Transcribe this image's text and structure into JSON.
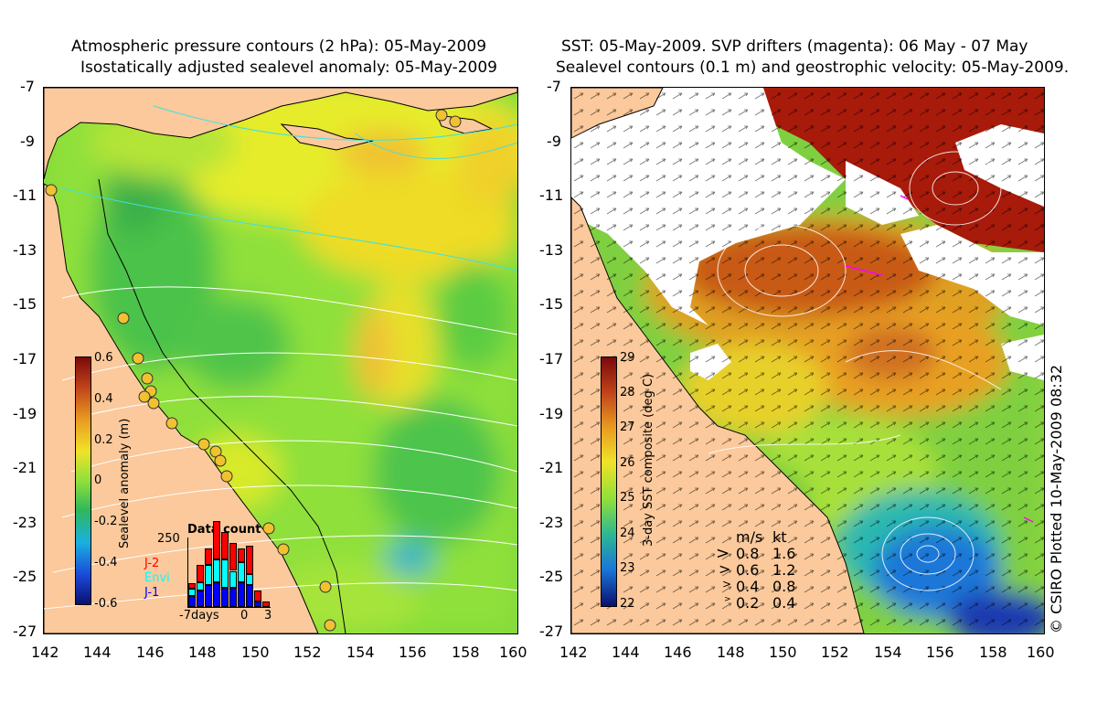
{
  "left_panel": {
    "title_line1": "Atmospheric pressure contours (2 hPa): 05-May-2009",
    "title_line2": "Isostatically adjusted sealevel anomaly: 05-May-2009",
    "y_ticks": [
      "-7",
      "-9",
      "-11",
      "-13",
      "-15",
      "-17",
      "-19",
      "-21",
      "-23",
      "-25",
      "-27"
    ],
    "x_ticks": [
      "142",
      "144",
      "146",
      "148",
      "150",
      "152",
      "154",
      "156",
      "158",
      "160"
    ],
    "colorbar": {
      "label": "Sealevel anomaly (m)",
      "ticks": [
        "0.6",
        "0.4",
        "0.2",
        "0",
        "-0.2",
        "-0.4",
        "-0.6"
      ],
      "range": [
        -0.6,
        0.6
      ]
    },
    "data_count": {
      "title": "Data count",
      "y_label": "250",
      "x_labels": [
        "-7days",
        "0",
        "3"
      ],
      "legend": [
        {
          "name": "J-2",
          "color": "#ff0000"
        },
        {
          "name": "Envi",
          "color": "#00ffff"
        },
        {
          "name": "J-1",
          "color": "#0000ff"
        }
      ],
      "bars": [
        {
          "j1": 40,
          "envi": 25,
          "j2": 20
        },
        {
          "j1": 60,
          "envi": 30,
          "j2": 60
        },
        {
          "j1": 80,
          "envi": 70,
          "j2": 60
        },
        {
          "j1": 90,
          "envi": 80,
          "j2": 140
        },
        {
          "j1": 70,
          "envi": 100,
          "j2": 100
        },
        {
          "j1": 70,
          "envi": 60,
          "j2": 100
        },
        {
          "j1": 90,
          "envi": 70,
          "j2": 50
        },
        {
          "j1": 80,
          "envi": 40,
          "j2": 100
        },
        {
          "j1": 20,
          "envi": 0,
          "j2": 40
        },
        {
          "j1": 0,
          "envi": 0,
          "j2": 20
        }
      ]
    }
  },
  "right_panel": {
    "title_line1": "SST: 05-May-2009. SVP drifters (magenta): 06 May - 07 May",
    "title_line2": "Sealevel contours (0.1 m) and geostrophic velocity: 05-May-2009.",
    "y_ticks": [
      "-7",
      "-9",
      "-11",
      "-13",
      "-15",
      "-17",
      "-19",
      "-21",
      "-23",
      "-25",
      "-27"
    ],
    "x_ticks": [
      "142",
      "144",
      "146",
      "148",
      "150",
      "152",
      "154",
      "156",
      "158",
      "160"
    ],
    "colorbar": {
      "label": "3-day SST composite (deg C)",
      "ticks": [
        "29",
        "28",
        "27",
        "26",
        "25",
        "24",
        "23",
        "22"
      ],
      "range": [
        22,
        29
      ]
    },
    "velocity_legend": {
      "header_ms": "m/s",
      "header_kt": "kt",
      "rows": [
        {
          "ms": "0.8",
          "kt": "1.6"
        },
        {
          "ms": "0.6",
          "kt": "1.2"
        },
        {
          "ms": "0.4",
          "kt": "0.8"
        },
        {
          "ms": "0.2",
          "kt": "0.4"
        }
      ]
    }
  },
  "copyright": "© CSIRO Plotted 10-May-2009 08:32",
  "colors": {
    "land": "#fbc99b",
    "cloud": "#ffffff",
    "ssh_mid": "#7fd83a",
    "sst_warm": "#a81a0a"
  }
}
